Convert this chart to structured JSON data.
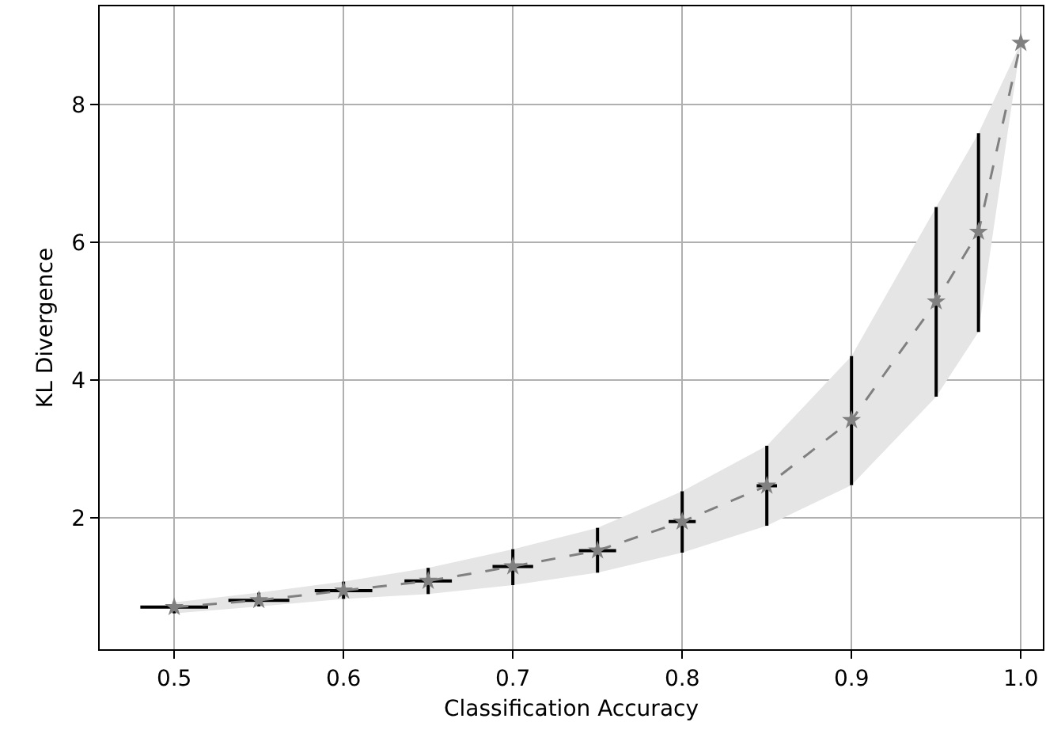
{
  "chart_data": {
    "type": "line",
    "xlabel": "Classification Accuracy",
    "ylabel": "KL Divergence",
    "x": [
      0.5,
      0.55,
      0.6,
      0.65,
      0.7,
      0.75,
      0.8,
      0.85,
      0.9,
      0.95,
      0.975,
      1.0
    ],
    "series": [
      {
        "color": "#808080",
        "values": [
          0.71,
          0.81,
          0.95,
          1.09,
          1.3,
          1.53,
          1.95,
          2.47,
          3.42,
          5.14,
          6.15,
          8.89
        ],
        "errors": [
          [
            0.62,
            0.78
          ],
          [
            0.72,
            0.92
          ],
          [
            0.83,
            1.08
          ],
          [
            0.9,
            1.28
          ],
          [
            1.03,
            1.55
          ],
          [
            1.21,
            1.86
          ],
          [
            1.5,
            2.39
          ],
          [
            1.89,
            3.05
          ],
          [
            2.48,
            4.35
          ],
          [
            3.76,
            6.51
          ],
          [
            4.7,
            7.58
          ],
          null
        ],
        "xerrors": [
          0.02,
          0.018,
          0.017,
          0.014,
          0.012,
          0.011,
          0.008,
          0.006,
          null,
          null,
          null,
          null
        ],
        "lower": [
          0.62,
          0.72,
          0.83,
          0.9,
          1.03,
          1.21,
          1.5,
          1.89,
          2.48,
          3.76,
          4.7,
          8.89
        ],
        "upper": [
          0.78,
          0.92,
          1.08,
          1.28,
          1.55,
          1.86,
          2.39,
          3.05,
          4.35,
          6.51,
          7.58,
          8.89
        ]
      }
    ],
    "xlim": [
      0.456,
      1.013
    ],
    "ylim": [
      0.1,
      9.42
    ],
    "xticks": [
      0.5,
      0.6,
      0.7,
      0.8,
      0.9,
      {
        "value": 1.0,
        "label": "1.0"
      }
    ],
    "yticks": [
      2,
      4,
      6,
      8
    ],
    "grid": true,
    "marker": "star",
    "line_style": "dashed"
  }
}
